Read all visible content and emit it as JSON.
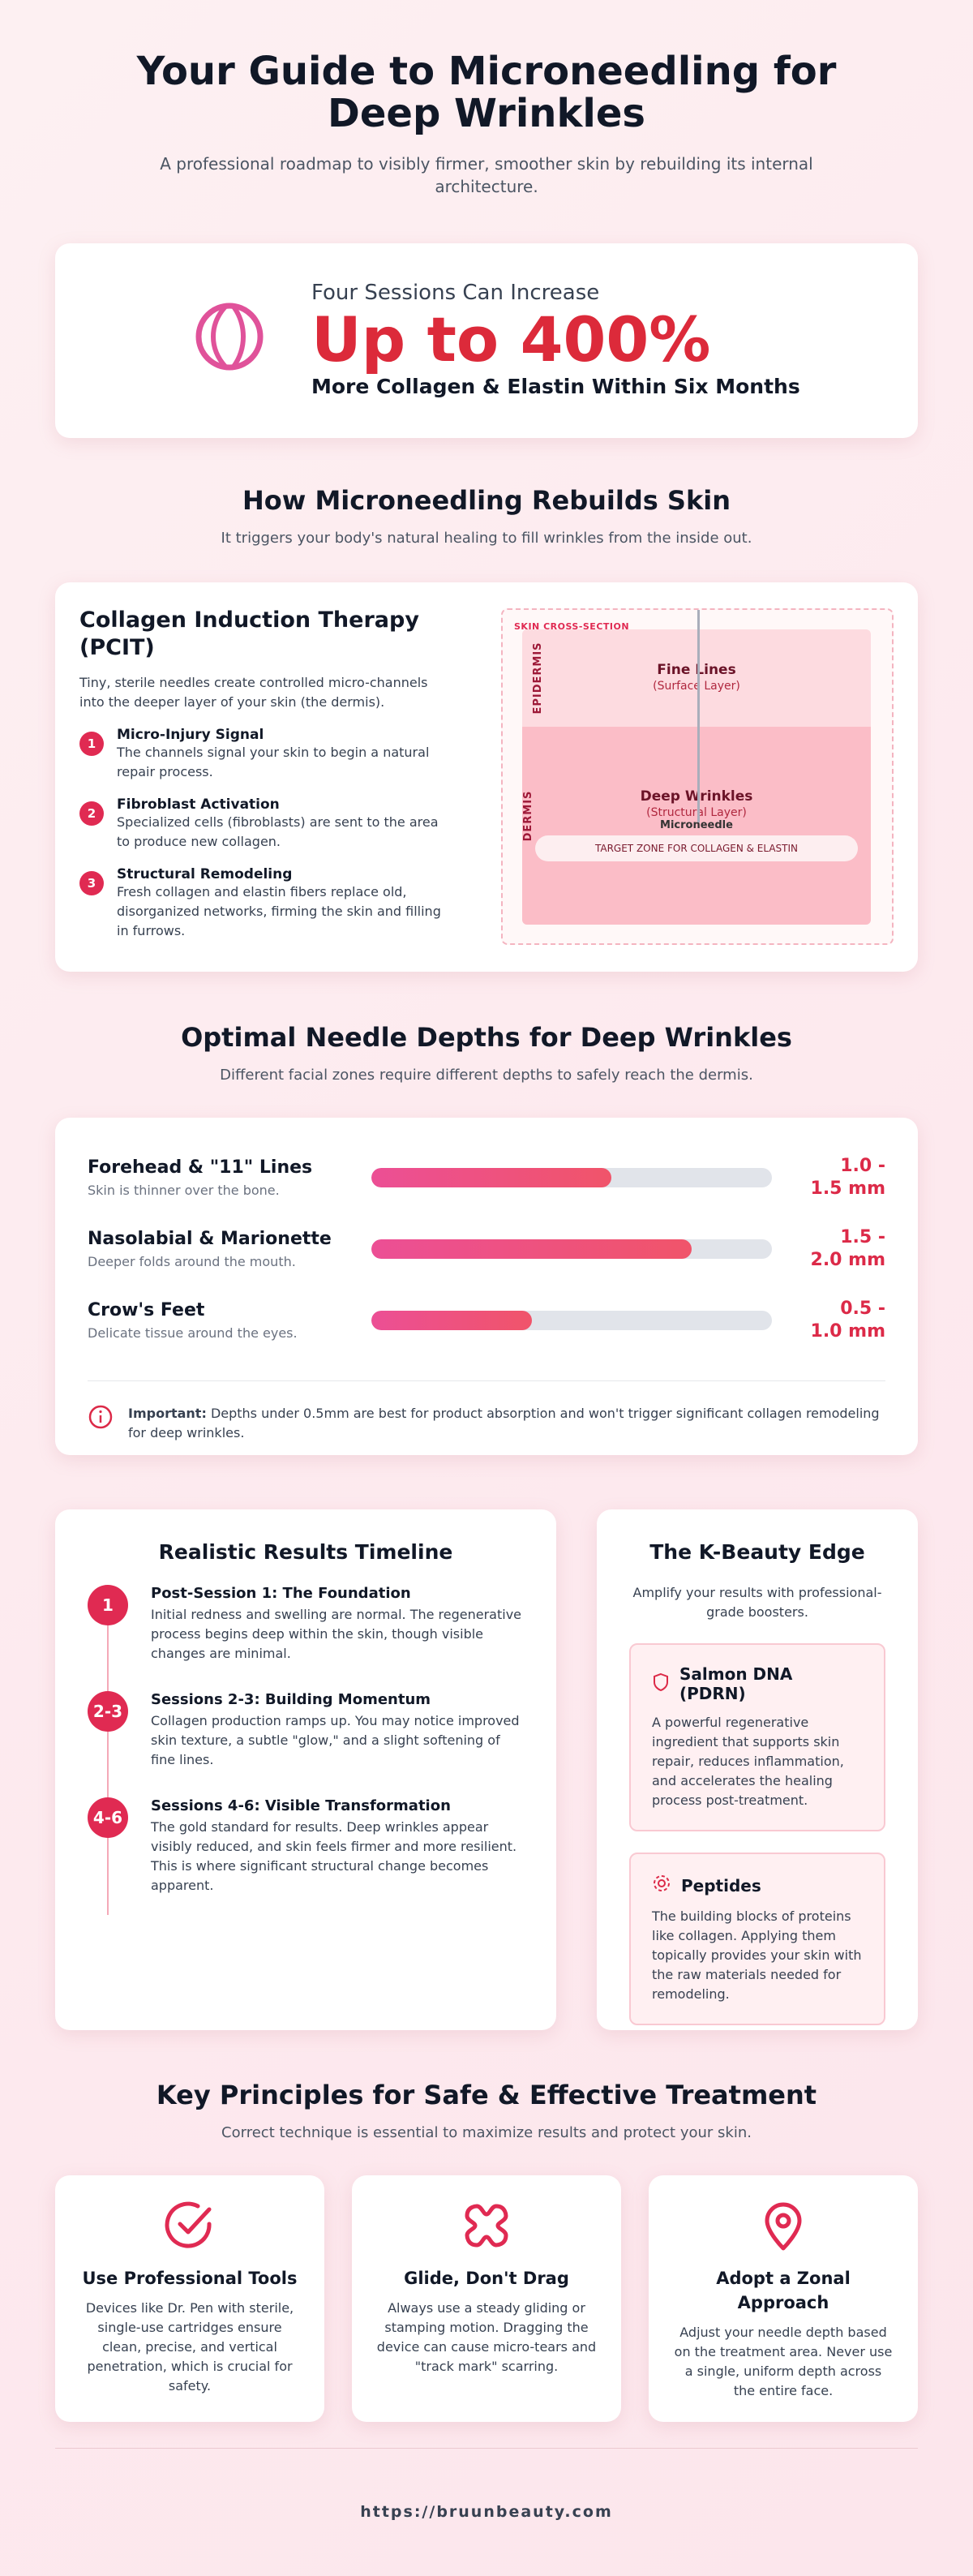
{
  "header": {
    "title": "Your Guide to Microneedling for Deep Wrinkles",
    "subtitle": "A professional roadmap to visibly firmer, smoother skin by rebuilding its internal architecture."
  },
  "hero": {
    "kicker": "Four Sessions Can Increase",
    "stat": "Up to 400%",
    "caption": "More Collagen & Elastin Within Six Months"
  },
  "how": {
    "title": "How Microneedling Rebuilds Skin",
    "subtitle": "It triggers your body's natural healing to fill wrinkles from the inside out.",
    "card_title": "Collagen Induction Therapy (PCIT)",
    "intro": "Tiny, sterile needles create controlled micro-channels into the deeper layer of your skin (the dermis).",
    "steps": [
      {
        "number": "1",
        "title": "Micro-Injury Signal",
        "text": "The channels signal your skin to begin a natural repair process."
      },
      {
        "number": "2",
        "title": "Fibroblast Activation",
        "text": "Specialized cells (fibroblasts) are sent to the area to produce new collagen."
      },
      {
        "number": "3",
        "title": "Structural Remodeling",
        "text": "Fresh collagen and elastin fibers replace old, disorganized networks, firming the skin and filling in furrows."
      }
    ],
    "diagram": {
      "label": "SKIN CROSS-SECTION",
      "epidermis": "EPIDERMIS",
      "dermis": "DERMIS",
      "fine": "Fine Lines",
      "fine_sub": "(Surface Layer)",
      "deep": "Deep Wrinkles",
      "deep_sub": "(Structural Layer)",
      "needle": "Microneedle",
      "zone": "TARGET ZONE FOR COLLAGEN & ELASTIN"
    }
  },
  "depths": {
    "title": "Optimal Needle Depths for Deep Wrinkles",
    "subtitle": "Different facial zones require different depths to safely reach the dermis.",
    "zones": [
      {
        "name": "Forehead & \"11\" Lines",
        "note": "Skin is thinner over the bone.",
        "depth": "1.0 - 1.5 mm",
        "fill": 60
      },
      {
        "name": "Nasolabial & Marionette",
        "note": "Deeper folds around the mouth.",
        "depth": "1.5 - 2.0 mm",
        "fill": 80
      },
      {
        "name": "Crow's Feet",
        "note": "Delicate tissue around the eyes.",
        "depth": "0.5 - 1.0 mm",
        "fill": 40
      }
    ],
    "note_label": "Important:",
    "note": "Depths under 0.5mm are best for product absorption and won't trigger significant collagen remodeling for deep wrinkles."
  },
  "timeline": {
    "title": "Realistic Results Timeline",
    "items": [
      {
        "badge": "1",
        "title": "Post-Session 1: The Foundation",
        "text": "Initial redness and swelling are normal. The regenerative process begins deep within the skin, though visible changes are minimal."
      },
      {
        "badge": "2-3",
        "title": "Sessions 2-3: Building Momentum",
        "text": "Collagen production ramps up. You may notice improved skin texture, a subtle \"glow,\" and a slight softening of fine lines."
      },
      {
        "badge": "4-6",
        "title": "Sessions 4-6: Visible Transformation",
        "text": "The gold standard for results. Deep wrinkles appear visibly reduced, and skin feels firmer and more resilient. This is where significant structural change becomes apparent."
      }
    ]
  },
  "kbeauty": {
    "title": "The K-Beauty Edge",
    "intro": "Amplify your results with professional-grade boosters.",
    "items": [
      {
        "title": "Salmon DNA (PDRN)",
        "text": "A powerful regenerative ingredient that supports skin repair, reduces inflammation, and accelerates the healing process post-treatment."
      },
      {
        "title": "Peptides",
        "text": "The building blocks of proteins like collagen. Applying them topically provides your skin with the raw materials needed for remodeling."
      }
    ]
  },
  "principles": {
    "title": "Key Principles for Safe & Effective Treatment",
    "subtitle": "Correct technique is essential to maximize results and protect your skin.",
    "items": [
      {
        "title": "Use Professional Tools",
        "text": "Devices like Dr. Pen with sterile, single-use cartridges ensure clean, precise, and vertical penetration, which is crucial for safety."
      },
      {
        "title": "Glide, Don't Drag",
        "text": "Always use a steady gliding or stamping motion. Dragging the device can cause micro-tears and \"track mark\" scarring."
      },
      {
        "title": "Adopt a Zonal Approach",
        "text": "Adjust your needle depth based on the treatment area. Never use a single, uniform depth across the entire face."
      }
    ]
  },
  "footer": {
    "url": "https://bruunbeauty.com"
  }
}
